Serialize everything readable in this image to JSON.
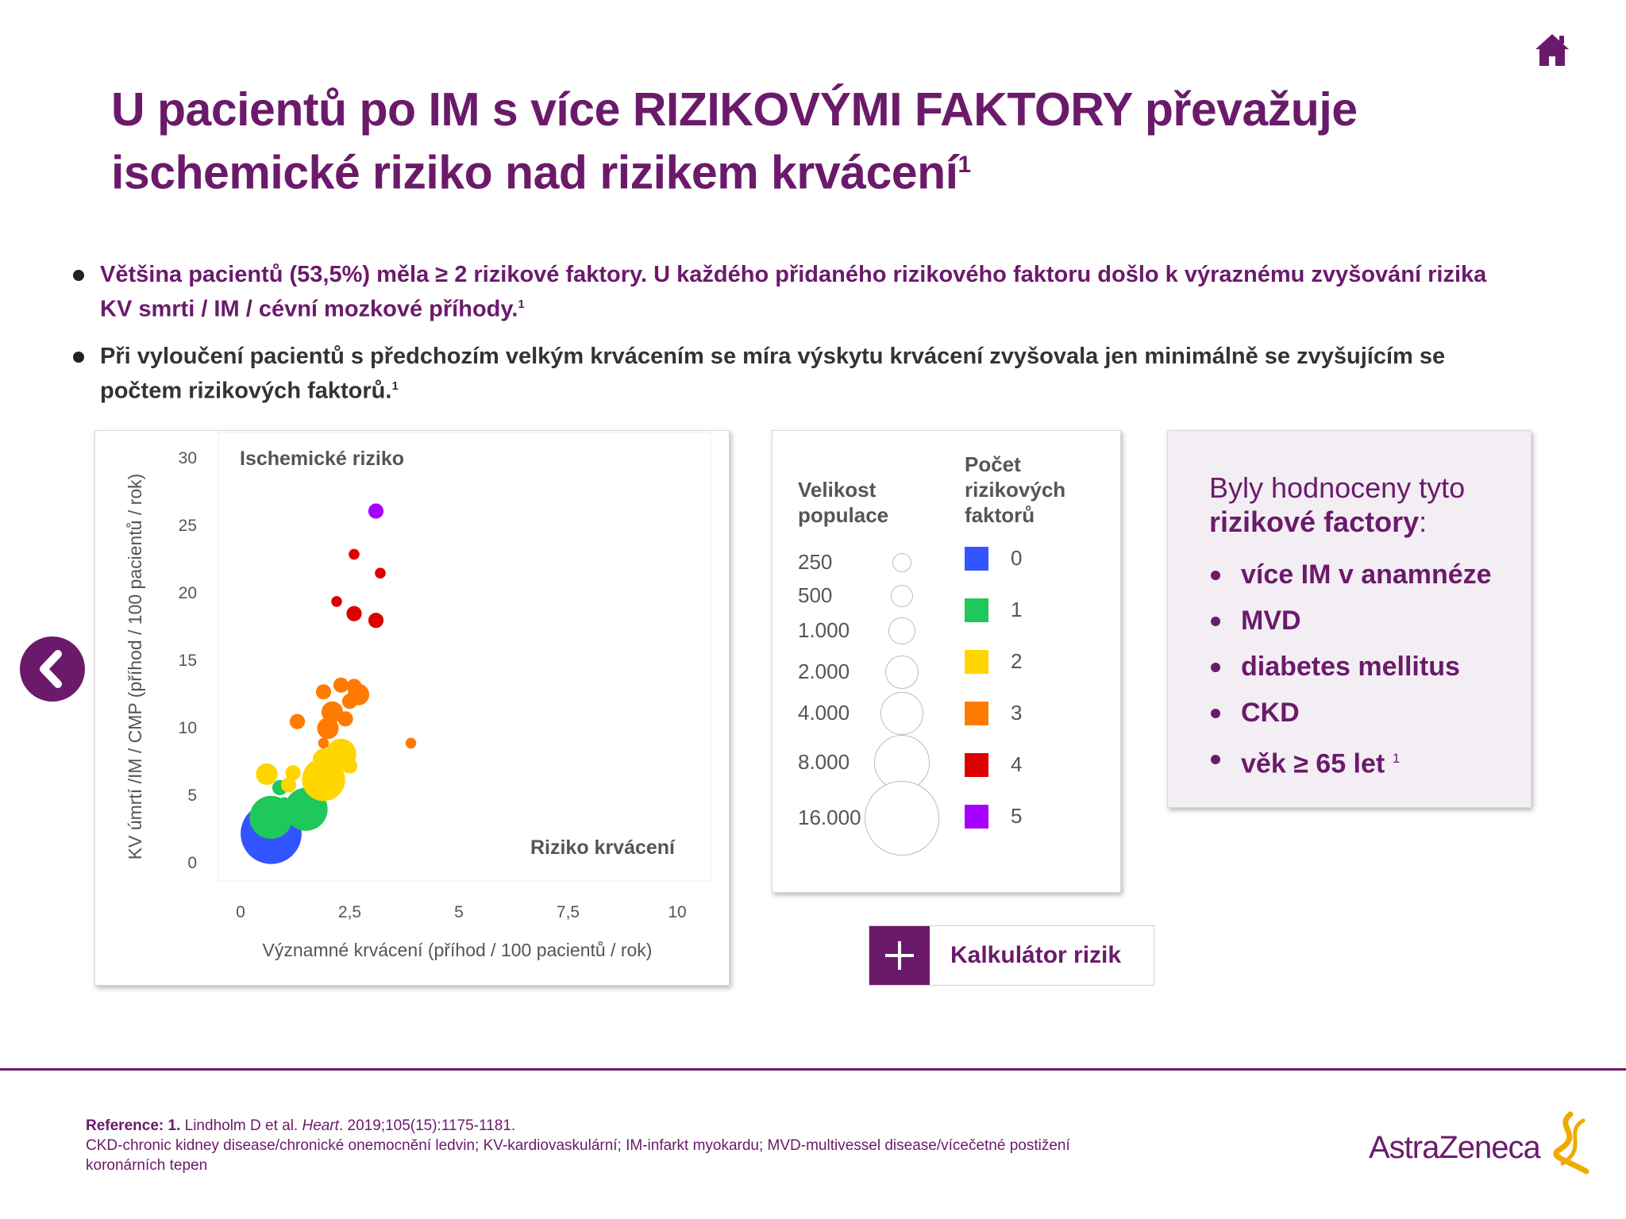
{
  "header": {
    "title_main": "U pacientů po IM s více RIZIKOVÝMI FAKTORY převažuje ischemické riziko nad rizikem krvácení",
    "title_sup": "1"
  },
  "bullets": [
    {
      "text": "Většina pacientů (53,5%) měla ≥ 2 rizikové faktory. U každého přidaného rizikového faktoru došlo k výraznému zvyšování rizika KV smrti / IM / cévní mozkové příhody.",
      "sup": "1"
    },
    {
      "text": "Při vyloučení pacientů s předchozím velkým krvácením se míra výskytu krvácení zvyšovala jen minimálně se zvyšujícím se počtem rizikových faktorů.",
      "sup": "1"
    }
  ],
  "chart_data": {
    "type": "scatter",
    "title": "",
    "xlabel": "Významné krvácení (příhod / 100 pacientů / rok)",
    "ylabel": "KV úmrtí /IM / CMP (příhod / 100 pacientů / rok)",
    "xlim": [
      0,
      10
    ],
    "ylim": [
      0,
      30
    ],
    "x_ticks": [
      "0",
      "2,5",
      "5",
      "7,5",
      "10"
    ],
    "y_ticks": [
      "0",
      "5",
      "10",
      "15",
      "20",
      "25",
      "30"
    ],
    "annotations": {
      "top_left": "Ischemické riziko",
      "bottom_right": "Riziko krvácení"
    },
    "grid": false,
    "series": [
      {
        "name": "0",
        "color": "#3355ff",
        "points": [
          {
            "x": 0.7,
            "y": 2.1,
            "size": 16000
          }
        ]
      },
      {
        "name": "1",
        "color": "#1ec85a",
        "points": [
          {
            "x": 0.7,
            "y": 3.3,
            "size": 8000
          },
          {
            "x": 1.5,
            "y": 3.9,
            "size": 8000
          },
          {
            "x": 0.9,
            "y": 5.5,
            "size": 1000
          },
          {
            "x": 1.0,
            "y": 4.4,
            "size": 500
          }
        ]
      },
      {
        "name": "2",
        "color": "#ffd500",
        "points": [
          {
            "x": 0.6,
            "y": 6.5,
            "size": 2000
          },
          {
            "x": 1.2,
            "y": 6.6,
            "size": 1000
          },
          {
            "x": 1.1,
            "y": 5.7,
            "size": 1000
          },
          {
            "x": 1.9,
            "y": 6.1,
            "size": 8000
          },
          {
            "x": 2.1,
            "y": 6.3,
            "size": 2000
          },
          {
            "x": 1.9,
            "y": 7.6,
            "size": 2000
          },
          {
            "x": 2.3,
            "y": 8.0,
            "size": 4000
          },
          {
            "x": 2.5,
            "y": 7.1,
            "size": 1000
          }
        ]
      },
      {
        "name": "3",
        "color": "#ff7a00",
        "points": [
          {
            "x": 1.3,
            "y": 10.4,
            "size": 1000
          },
          {
            "x": 1.9,
            "y": 12.6,
            "size": 1000
          },
          {
            "x": 2.3,
            "y": 13.1,
            "size": 1000
          },
          {
            "x": 2.6,
            "y": 13.0,
            "size": 1000
          },
          {
            "x": 2.7,
            "y": 12.4,
            "size": 2000
          },
          {
            "x": 2.5,
            "y": 11.9,
            "size": 1000
          },
          {
            "x": 2.1,
            "y": 11.1,
            "size": 2000
          },
          {
            "x": 2.4,
            "y": 10.6,
            "size": 1000
          },
          {
            "x": 2.0,
            "y": 9.9,
            "size": 2000
          },
          {
            "x": 1.9,
            "y": 8.8,
            "size": 500
          },
          {
            "x": 3.9,
            "y": 8.8,
            "size": 500
          }
        ]
      },
      {
        "name": "4",
        "color": "#dd0000",
        "points": [
          {
            "x": 2.6,
            "y": 22.8,
            "size": 500
          },
          {
            "x": 3.2,
            "y": 21.4,
            "size": 500
          },
          {
            "x": 2.2,
            "y": 19.3,
            "size": 500
          },
          {
            "x": 2.6,
            "y": 18.4,
            "size": 1000
          },
          {
            "x": 3.1,
            "y": 17.9,
            "size": 1000
          }
        ]
      },
      {
        "name": "5",
        "color": "#a600ff",
        "points": [
          {
            "x": 3.1,
            "y": 26.0,
            "size": 1000
          }
        ]
      }
    ]
  },
  "legend": {
    "size_header": "Velikost populace",
    "risk_header": "Počet rizikových faktorů",
    "sizes": [
      "250",
      "500",
      "1.000",
      "2.000",
      "4.000",
      "8.000",
      "16.000"
    ],
    "risk_counts": [
      {
        "label": "0",
        "color": "#3355ff"
      },
      {
        "label": "1",
        "color": "#1ec85a"
      },
      {
        "label": "2",
        "color": "#ffd500"
      },
      {
        "label": "3",
        "color": "#ff7a00"
      },
      {
        "label": "4",
        "color": "#dd0000"
      },
      {
        "label": "5",
        "color": "#a600ff"
      }
    ]
  },
  "risk_panel": {
    "heading_normal": "Byly hodnoceny tyto",
    "heading_bold": "rizikové factory",
    "heading_colon": ":",
    "items": [
      "více IM v anamnéze",
      "MVD",
      "diabetes mellitus",
      "CKD",
      "věk ≥ 65 let"
    ],
    "last_sup": "1"
  },
  "calculator": {
    "label": "Kalkulátor rizik"
  },
  "footer": {
    "ref_label": "Reference:",
    "ref_num": "1.",
    "ref_authors": "Lindholm D et al.",
    "ref_journal": "Heart",
    "ref_details": ". 2019;105(15):1175-1181.",
    "abbreviations": "CKD-chronic kidney disease/chronické onemocnění ledvin; KV-kardiovaskulární; IM-infarkt myokardu; MVD-multivessel disease/vícečetné postižení koronárních tepen",
    "logo_text": "AstraZeneca"
  },
  "colors": {
    "brand": "#6b1a6b",
    "logo_gold": "#f0ab00"
  }
}
